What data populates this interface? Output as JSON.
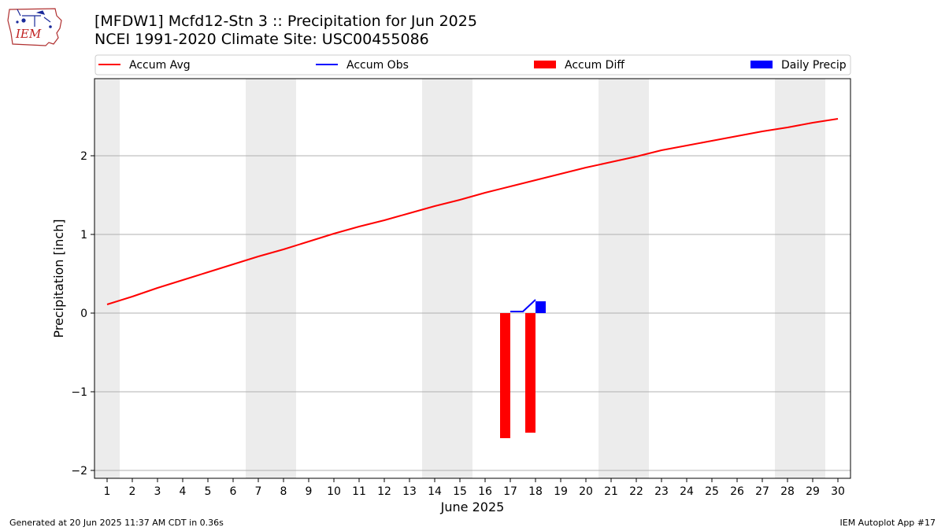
{
  "header": {
    "title_line1": "[MFDW1] Mcfd12-Stn 3 :: Precipitation for Jun 2025",
    "title_line2": "NCEI 1991-2020 Climate Site: USC00455086",
    "logo_text": "IEM"
  },
  "footer": {
    "generated": "Generated at 20 Jun 2025 11:37 AM CDT in 0.36s",
    "app": "IEM Autoplot App #17"
  },
  "chart_data": {
    "type": "line",
    "xlabel": "June 2025",
    "ylabel": "Precipitation [inch]",
    "categories": [
      "1",
      "2",
      "3",
      "4",
      "5",
      "6",
      "7",
      "8",
      "9",
      "10",
      "11",
      "12",
      "13",
      "14",
      "15",
      "16",
      "17",
      "18",
      "19",
      "20",
      "21",
      "22",
      "23",
      "24",
      "25",
      "26",
      "27",
      "28",
      "29",
      "30"
    ],
    "xlim": [
      0.5,
      30.5
    ],
    "ylim": [
      -2.1,
      2.98
    ],
    "yticks": [
      2,
      1,
      0,
      -1,
      -2
    ],
    "ytick_labels": [
      "2",
      "1",
      "0",
      "−1",
      "−2"
    ],
    "grid": "horizontal",
    "weekend_shading": [
      [
        0.5,
        1.5
      ],
      [
        6.5,
        8.5
      ],
      [
        13.5,
        15.5
      ],
      [
        20.5,
        22.5
      ],
      [
        27.5,
        29.5
      ]
    ],
    "legend_placement": "top, above plot",
    "series": [
      {
        "name": "Accum Avg",
        "kind": "line",
        "color": "#ff0000",
        "x": [
          1,
          2,
          3,
          4,
          5,
          6,
          7,
          8,
          9,
          10,
          11,
          12,
          13,
          14,
          15,
          16,
          17,
          18,
          19,
          20,
          21,
          22,
          23,
          24,
          25,
          26,
          27,
          28,
          29,
          30
        ],
        "values": [
          0.11,
          0.21,
          0.32,
          0.42,
          0.52,
          0.62,
          0.72,
          0.81,
          0.91,
          1.01,
          1.1,
          1.18,
          1.27,
          1.36,
          1.44,
          1.53,
          1.61,
          1.69,
          1.77,
          1.85,
          1.92,
          1.99,
          2.07,
          2.13,
          2.19,
          2.25,
          2.31,
          2.36,
          2.42,
          2.47
        ]
      },
      {
        "name": "Accum Obs",
        "kind": "line",
        "color": "#0000ff",
        "x": [
          17,
          17.4,
          17.5,
          18
        ],
        "values": [
          0.02,
          0.02,
          0.02,
          0.17
        ]
      },
      {
        "name": "Accum Diff",
        "kind": "bar",
        "color": "#ff0000",
        "x": [
          17,
          18
        ],
        "values": [
          -1.59,
          -1.52
        ]
      },
      {
        "name": "Daily Precip",
        "kind": "bar",
        "color": "#0000ff",
        "x": [
          18
        ],
        "values": [
          0.15
        ]
      }
    ]
  }
}
